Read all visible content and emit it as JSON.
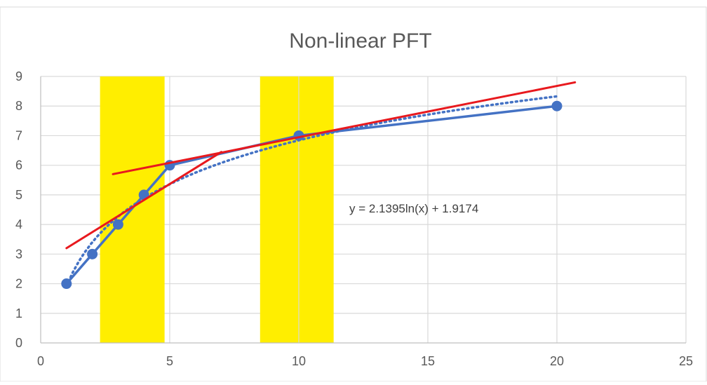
{
  "chart_data": {
    "type": "scatter",
    "title": "Non-linear PFT",
    "xlabel": "",
    "ylabel": "",
    "xlim": [
      0,
      25
    ],
    "ylim": [
      0,
      9
    ],
    "x_ticks": [
      0,
      5,
      10,
      15,
      20,
      25
    ],
    "y_ticks": [
      0,
      1,
      2,
      3,
      4,
      5,
      6,
      7,
      8,
      9
    ],
    "grid": true,
    "legend": "none",
    "series": [
      {
        "style": "line-with-markers",
        "color": "#4472c4",
        "points": [
          {
            "x": 1,
            "y": 2
          },
          {
            "x": 2,
            "y": 3
          },
          {
            "x": 3,
            "y": 4
          },
          {
            "x": 4,
            "y": 5
          },
          {
            "x": 5,
            "y": 6
          },
          {
            "x": 10,
            "y": 7
          },
          {
            "x": 20,
            "y": 8
          }
        ]
      }
    ],
    "trendline": {
      "type": "logarithmic",
      "a": 2.1395,
      "b": 1.9174,
      "x_range": [
        1,
        20
      ],
      "color": "#4472c4",
      "style": "dotted",
      "equation_label": "y = 2.1395ln(x) + 1.9174"
    },
    "highlight_bands": [
      {
        "x_range": [
          2.3,
          4.8
        ],
        "color": "#ffee00"
      },
      {
        "x_range": [
          8.5,
          11.35
        ],
        "color": "#ffee00"
      }
    ],
    "tangent_lines": [
      {
        "from": {
          "x": 1,
          "y": 3.2
        },
        "to": {
          "x": 7,
          "y": 6.45
        },
        "color": "#e8191e"
      },
      {
        "from": {
          "x": 2.8,
          "y": 5.7
        },
        "to": {
          "x": 20.7,
          "y": 8.8
        },
        "color": "#e8191e"
      }
    ]
  }
}
